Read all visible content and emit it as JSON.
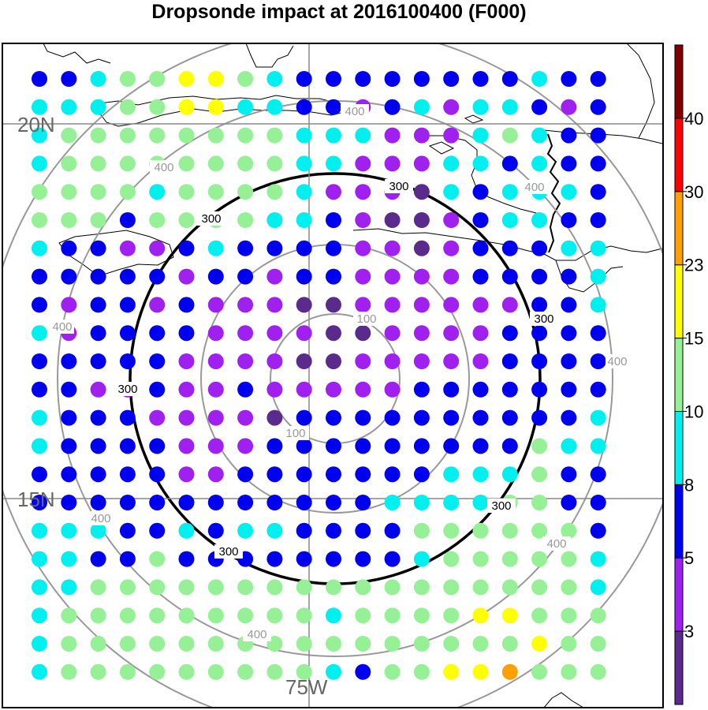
{
  "title": "Dropsonde impact at 2016100400 (F000)",
  "grid_labels": {
    "lat_upper": "20N",
    "lat_lower": "15N",
    "lon": "75W"
  },
  "contour_labels": {
    "inner": "100",
    "middle": "300",
    "outer": "400"
  },
  "colorbar": {
    "tick_labels": [
      "3",
      "5",
      "8",
      "10",
      "15",
      "23",
      "30",
      "40"
    ],
    "colors": [
      "#5a2a8c",
      "#a020f0",
      "#0000f0",
      "#00f0f0",
      "#96f096",
      "#ffff00",
      "#ffa000",
      "#ff0000",
      "#800000"
    ]
  },
  "chart_data": {
    "type": "scatter",
    "title": "Dropsonde impact at 2016100400 (F000)",
    "x_range": [
      "77.5W",
      "72.5W"
    ],
    "y_range": [
      "14.2N",
      "21.3N"
    ],
    "grid_lines": {
      "latitudes": [
        "20N",
        "15N"
      ],
      "longitudes": [
        "75W"
      ]
    },
    "color_scale_levels": [
      3,
      5,
      8,
      10,
      15,
      23,
      30,
      40
    ],
    "impact_classes": "0=dark purple (<3), 1=purple (3-5), 2=blue (5-8), 3=cyan (8-10), 4=light green (10-15), 5=yellow (15-23), 6=orange, 7=red, 8=dark red",
    "grid_rows_north_to_south": [
      "22344554322222222322",
      "33344553322123133212",
      "34444444433311134322",
      "34444444433111332322",
      "44443444431110323332",
      "44424444332100123322",
      "32211232222110122233",
      "22222122122111122223",
      "21221211100111111223",
      "31222211110011112222",
      "22222111100111112222",
      "22112112111112222222",
      "32221111022222222223",
      "32222111222222222433",
      "22222112222222333422",
      "22222222222233334422",
      "33322323322224444442",
      "33224222222223444443",
      "33444444444444444443",
      "34444444443444455444",
      "34444444444444444544",
      "34444444443244556444"
    ]
  }
}
